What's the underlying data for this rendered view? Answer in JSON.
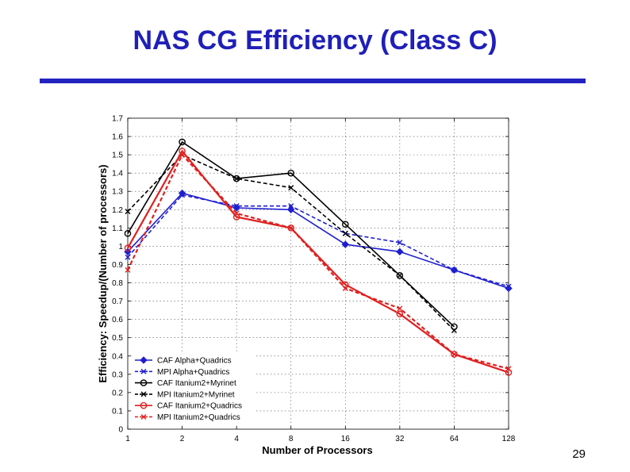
{
  "slide": {
    "title": "NAS CG Efficiency (Class C)",
    "page_number": "29"
  },
  "colors": {
    "title": "#1f1fb8",
    "blue": "#1f1fd0",
    "black": "#000000",
    "red": "#e02020"
  },
  "chart_data": {
    "type": "line",
    "title": "",
    "xlabel": "Number of Processors",
    "ylabel": "Efficiency: Speedup/(Number of processors)",
    "categories": [
      "1",
      "2",
      "4",
      "8",
      "16",
      "32",
      "64",
      "128"
    ],
    "ylim": [
      0,
      1.7
    ],
    "yticks": [
      "0",
      "0.1",
      "0.2",
      "0.3",
      "0.4",
      "0.5",
      "0.6",
      "0.7",
      "0.8",
      "0.9",
      "1",
      "1.1",
      "1.2",
      "1.3",
      "1.4",
      "1.5",
      "1.6",
      "1.7"
    ],
    "grid": true,
    "legend_position": "lower-left",
    "series": [
      {
        "name": "CAF Alpha+Quadrics",
        "color": "#1f1fd0",
        "dashed": false,
        "marker": "diamond",
        "values": [
          0.97,
          1.29,
          1.21,
          1.2,
          1.01,
          0.97,
          0.87,
          0.77
        ]
      },
      {
        "name": "MPI Alpha+Quadrics",
        "color": "#1f1fd0",
        "dashed": true,
        "marker": "x",
        "values": [
          0.94,
          1.28,
          1.22,
          1.22,
          1.07,
          1.02,
          0.87,
          0.78
        ]
      },
      {
        "name": "CAF Itanium2+Myrinet",
        "color": "#000000",
        "dashed": false,
        "marker": "circle",
        "values": [
          1.07,
          1.57,
          1.37,
          1.4,
          1.12,
          0.84,
          0.56,
          null
        ]
      },
      {
        "name": "MPI Itanium2+Myrinet",
        "color": "#000000",
        "dashed": true,
        "marker": "x",
        "values": [
          1.19,
          1.5,
          1.37,
          1.32,
          1.07,
          0.84,
          0.54,
          null
        ]
      },
      {
        "name": "CAF Itanium2+Quadrics",
        "color": "#e02020",
        "dashed": false,
        "marker": "circle",
        "values": [
          0.99,
          1.52,
          1.16,
          1.1,
          0.79,
          0.63,
          0.41,
          0.31
        ]
      },
      {
        "name": "MPI Itanium2+Quadrics",
        "color": "#e02020",
        "dashed": true,
        "marker": "x",
        "values": [
          0.87,
          1.5,
          1.18,
          1.1,
          0.77,
          0.66,
          0.41,
          0.33
        ]
      }
    ]
  }
}
